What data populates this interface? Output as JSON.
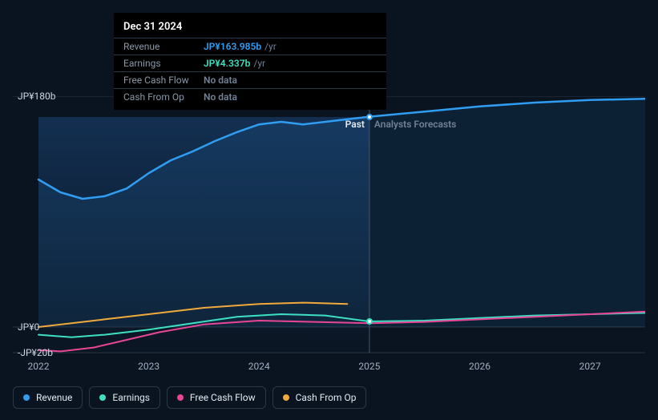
{
  "background_color": "#0a1420",
  "chart": {
    "type": "line",
    "xlim": [
      2022,
      2027.5
    ],
    "ylim": [
      -20,
      180
    ],
    "xticks": [
      2022,
      2023,
      2024,
      2025,
      2026,
      2027
    ],
    "yticks": [
      {
        "v": 180,
        "label": "JP¥180b"
      },
      {
        "v": 0,
        "label": "JP¥0"
      },
      {
        "v": -20,
        "label": "-JP¥20b"
      }
    ],
    "grid_color": "#2a3544",
    "divider_x": 2025,
    "divider_past_label": "Past",
    "divider_future_label": "Analysts Forecasts",
    "divider_past_color": "#e2e8f0",
    "divider_future_color": "#718096",
    "past_fill": "rgba(30,80,140,0.25)",
    "past_fill_top": "rgba(30,80,140,0.45)",
    "series": [
      {
        "key": "revenue",
        "label": "Revenue",
        "color": "#2f9ef2",
        "width": 2.5,
        "area": true,
        "area_fill": "rgba(47,158,242,0.10)",
        "points": [
          [
            2022.0,
            115
          ],
          [
            2022.2,
            105
          ],
          [
            2022.4,
            100
          ],
          [
            2022.6,
            102
          ],
          [
            2022.8,
            108
          ],
          [
            2023.0,
            120
          ],
          [
            2023.2,
            130
          ],
          [
            2023.4,
            137
          ],
          [
            2023.6,
            145
          ],
          [
            2023.8,
            152
          ],
          [
            2024.0,
            158
          ],
          [
            2024.2,
            160
          ],
          [
            2024.4,
            158
          ],
          [
            2024.6,
            160
          ],
          [
            2024.8,
            162
          ],
          [
            2025.0,
            163.985
          ],
          [
            2025.5,
            168
          ],
          [
            2026.0,
            172
          ],
          [
            2026.5,
            175
          ],
          [
            2027.0,
            177
          ],
          [
            2027.5,
            178
          ]
        ]
      },
      {
        "key": "earnings",
        "label": "Earnings",
        "color": "#3de0c2",
        "width": 2,
        "points": [
          [
            2022.0,
            -6
          ],
          [
            2022.3,
            -8
          ],
          [
            2022.6,
            -6
          ],
          [
            2023.0,
            -2
          ],
          [
            2023.4,
            3
          ],
          [
            2023.8,
            8
          ],
          [
            2024.2,
            10
          ],
          [
            2024.6,
            9
          ],
          [
            2025.0,
            4.337
          ],
          [
            2025.5,
            5
          ],
          [
            2026.0,
            7
          ],
          [
            2026.5,
            9
          ],
          [
            2027.0,
            10
          ],
          [
            2027.5,
            11
          ]
        ]
      },
      {
        "key": "fcf",
        "label": "Free Cash Flow",
        "color": "#e74694",
        "width": 2,
        "points": [
          [
            2022.0,
            -18
          ],
          [
            2022.2,
            -19
          ],
          [
            2022.5,
            -16
          ],
          [
            2022.8,
            -10
          ],
          [
            2023.1,
            -4
          ],
          [
            2023.5,
            2
          ],
          [
            2024.0,
            5
          ],
          [
            2024.5,
            4
          ],
          [
            2025.0,
            3
          ],
          [
            2025.5,
            4
          ],
          [
            2026.0,
            6
          ],
          [
            2026.5,
            8
          ],
          [
            2027.0,
            10
          ],
          [
            2027.5,
            12
          ]
        ]
      },
      {
        "key": "cfo",
        "label": "Cash From Op",
        "color": "#f2a93b",
        "width": 2,
        "past_only": true,
        "points": [
          [
            2022.0,
            0
          ],
          [
            2022.3,
            3
          ],
          [
            2022.6,
            6
          ],
          [
            2023.0,
            10
          ],
          [
            2023.5,
            15
          ],
          [
            2024.0,
            18
          ],
          [
            2024.4,
            19
          ],
          [
            2024.8,
            18
          ]
        ]
      }
    ],
    "markers": [
      {
        "series": "revenue",
        "x": 2025,
        "ring": "#2f9ef2"
      },
      {
        "series": "earnings",
        "x": 2025,
        "ring": "#3de0c2"
      }
    ]
  },
  "tooltip": {
    "title": "Dec 31 2024",
    "rows": [
      {
        "label": "Revenue",
        "value": "JP¥163.985b",
        "unit": "/yr",
        "color": "#2f9ef2"
      },
      {
        "label": "Earnings",
        "value": "JP¥4.337b",
        "unit": "/yr",
        "color": "#3de0c2"
      },
      {
        "label": "Free Cash Flow",
        "value": "No data",
        "unit": "",
        "color": "#718096"
      },
      {
        "label": "Cash From Op",
        "value": "No data",
        "unit": "",
        "color": "#718096"
      }
    ]
  },
  "legend": [
    {
      "key": "revenue",
      "label": "Revenue",
      "color": "#2f9ef2"
    },
    {
      "key": "earnings",
      "label": "Earnings",
      "color": "#3de0c2"
    },
    {
      "key": "fcf",
      "label": "Free Cash Flow",
      "color": "#e74694"
    },
    {
      "key": "cfo",
      "label": "Cash From Op",
      "color": "#f2a93b"
    }
  ]
}
